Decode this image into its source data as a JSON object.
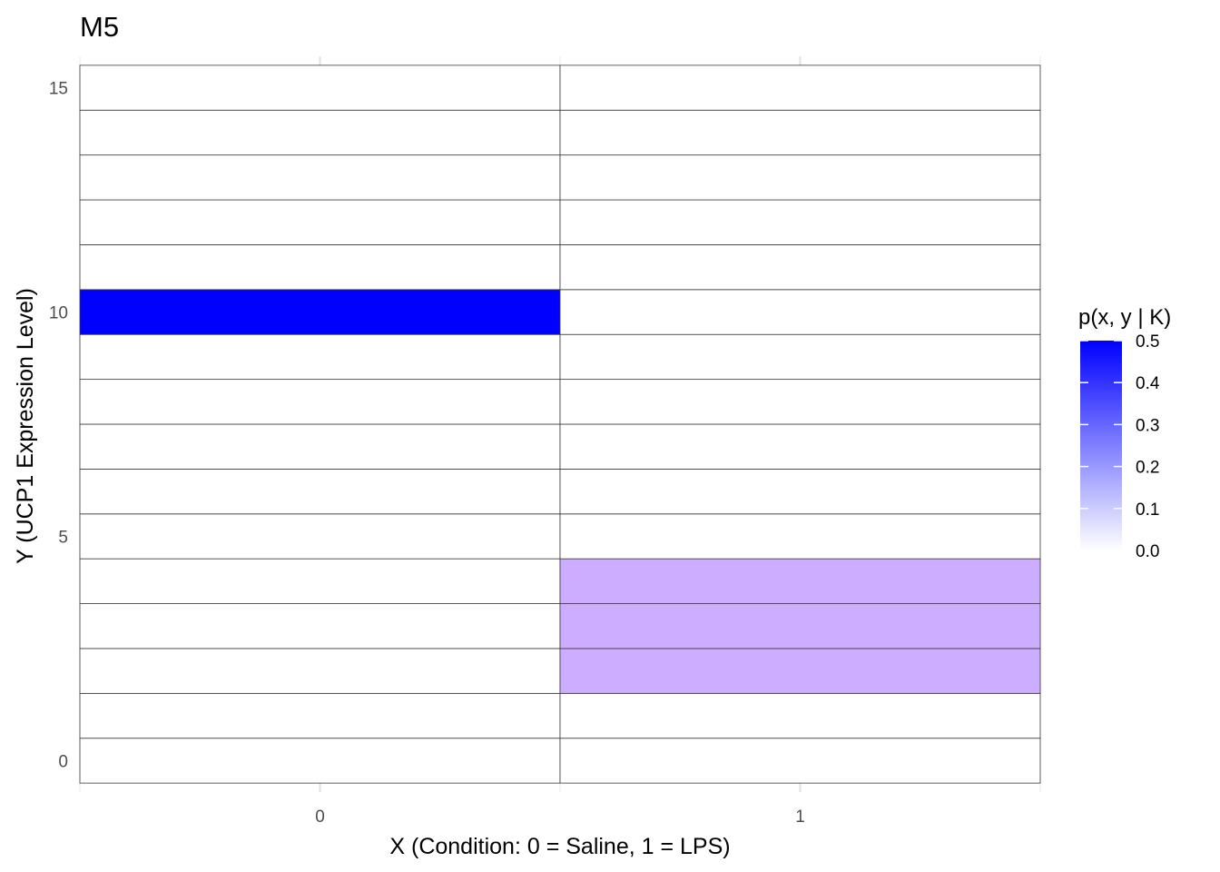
{
  "chart_data": {
    "type": "heatmap",
    "title": "M5",
    "xlabel": "X (Condition: 0 = Saline, 1 = LPS)",
    "ylabel": "Y (UCP1 Expression Level)",
    "x_categories": [
      0,
      1
    ],
    "y_range": [
      0,
      15
    ],
    "xlim": [
      -0.5,
      1.5
    ],
    "ylim": [
      -0.7,
      15.7
    ],
    "x_ticks": [
      "0",
      "1"
    ],
    "y_ticks": [
      0,
      5,
      10,
      15
    ],
    "grid": true,
    "cells": [
      {
        "x": 0,
        "y": 10,
        "value": 0.5
      },
      {
        "x": 1,
        "y": 2,
        "value": 0.1667
      },
      {
        "x": 1,
        "y": 3,
        "value": 0.1667
      },
      {
        "x": 1,
        "y": 4,
        "value": 0.1667
      }
    ],
    "default_value": 0.0,
    "legend": {
      "title": "p(x, y | K)",
      "position": "right",
      "min": 0.0,
      "max": 0.5,
      "ticks": [
        "0.0",
        "0.1",
        "0.2",
        "0.3",
        "0.4",
        "0.5"
      ],
      "low_color": "#ffffff",
      "high_color": "#0000ff"
    }
  }
}
